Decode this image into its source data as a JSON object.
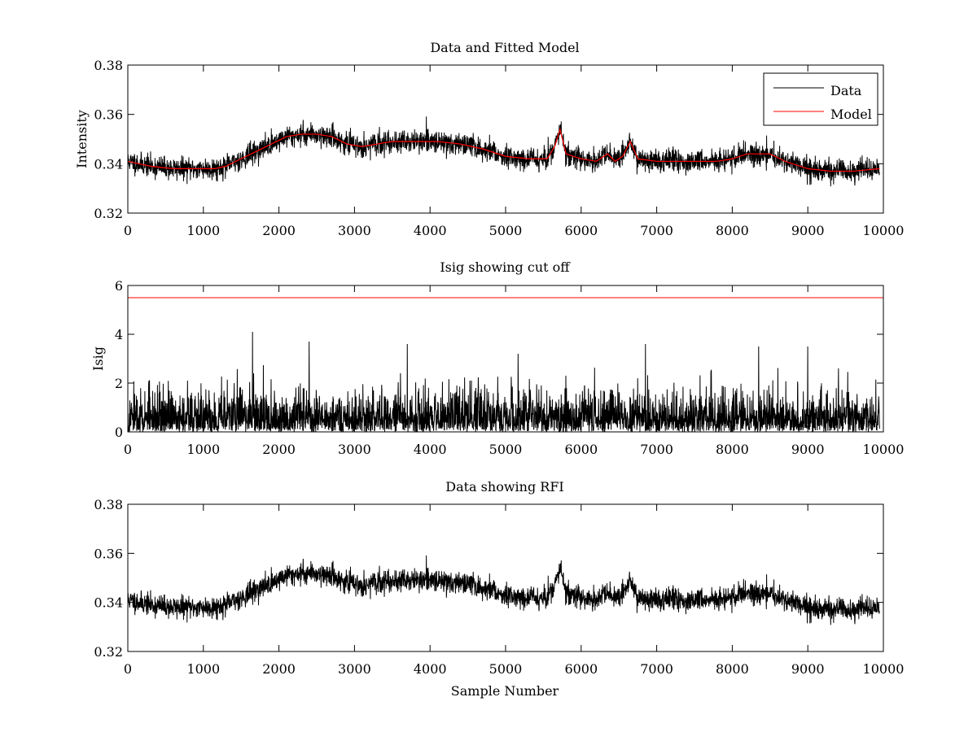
{
  "figure": {
    "background": "#ffffff"
  },
  "chart_data": [
    {
      "type": "line",
      "title": "Data and Fitted Model",
      "xlabel": "",
      "ylabel": "Intensity",
      "xlim": [
        0,
        10000
      ],
      "ylim": [
        0.32,
        0.38
      ],
      "xticks": [
        0,
        1000,
        2000,
        3000,
        4000,
        5000,
        6000,
        7000,
        8000,
        9000,
        10000
      ],
      "xtick_labels": [
        "0",
        "1000",
        "2000",
        "3000",
        "4000",
        "5000",
        "6000",
        "7000",
        "8000",
        "9000",
        "10000"
      ],
      "yticks": [
        0.32,
        0.34,
        0.36,
        0.38
      ],
      "ytick_labels": [
        "0.32",
        "0.34",
        "0.36",
        "0.38"
      ],
      "grid": false,
      "legend": {
        "placement": "top-right",
        "entries": [
          "Data",
          "Model"
        ]
      },
      "series": [
        {
          "name": "Data",
          "color": "#000000",
          "kind": "noisy",
          "x_max": 9950,
          "baseline": {
            "x": [
              0,
              300,
              600,
              900,
              1150,
              1300,
              1500,
              1700,
              1900,
              2100,
              2300,
              2500,
              2700,
              2900,
              3100,
              3300,
              3500,
              3800,
              4100,
              4400,
              4700,
              5000,
              5300,
              5550,
              5650,
              5720,
              5800,
              6000,
              6200,
              6350,
              6450,
              6550,
              6650,
              6750,
              7000,
              7500,
              7800,
              8000,
              8200,
              8500,
              8700,
              9000,
              9300,
              9600,
              9950
            ],
            "y": [
              0.341,
              0.339,
              0.338,
              0.338,
              0.338,
              0.339,
              0.342,
              0.345,
              0.348,
              0.351,
              0.352,
              0.352,
              0.351,
              0.348,
              0.347,
              0.348,
              0.349,
              0.349,
              0.349,
              0.348,
              0.346,
              0.343,
              0.342,
              0.342,
              0.347,
              0.354,
              0.344,
              0.342,
              0.341,
              0.344,
              0.341,
              0.343,
              0.349,
              0.342,
              0.341,
              0.341,
              0.341,
              0.342,
              0.344,
              0.344,
              0.341,
              0.338,
              0.337,
              0.337,
              0.338
            ]
          },
          "noise_amplitude": 0.004,
          "range_observed": [
            0.327,
            0.363
          ]
        },
        {
          "name": "Model",
          "color": "#ff0000",
          "kind": "smooth",
          "x": [
            0,
            300,
            600,
            900,
            1150,
            1300,
            1500,
            1700,
            1900,
            2100,
            2300,
            2500,
            2700,
            2900,
            3100,
            3300,
            3500,
            3800,
            4100,
            4400,
            4700,
            5000,
            5300,
            5550,
            5650,
            5720,
            5800,
            6000,
            6200,
            6350,
            6450,
            6550,
            6650,
            6750,
            7000,
            7500,
            7800,
            8000,
            8200,
            8500,
            8700,
            9000,
            9300,
            9600,
            9950
          ],
          "y": [
            0.341,
            0.339,
            0.338,
            0.338,
            0.338,
            0.339,
            0.342,
            0.345,
            0.348,
            0.351,
            0.352,
            0.352,
            0.351,
            0.348,
            0.347,
            0.348,
            0.349,
            0.349,
            0.349,
            0.348,
            0.346,
            0.343,
            0.342,
            0.342,
            0.347,
            0.354,
            0.344,
            0.342,
            0.341,
            0.344,
            0.341,
            0.343,
            0.349,
            0.342,
            0.341,
            0.341,
            0.341,
            0.342,
            0.344,
            0.344,
            0.341,
            0.338,
            0.337,
            0.337,
            0.338
          ]
        }
      ]
    },
    {
      "type": "line",
      "title": "Isig showing cut off",
      "xlabel": "",
      "ylabel": "Isig",
      "xlim": [
        0,
        10000
      ],
      "ylim": [
        0,
        6
      ],
      "xticks": [
        0,
        1000,
        2000,
        3000,
        4000,
        5000,
        6000,
        7000,
        8000,
        9000,
        10000
      ],
      "xtick_labels": [
        "0",
        "1000",
        "2000",
        "3000",
        "4000",
        "5000",
        "6000",
        "7000",
        "8000",
        "9000",
        "10000"
      ],
      "yticks": [
        0,
        2,
        4,
        6
      ],
      "ytick_labels": [
        "0",
        "2",
        "4",
        "6"
      ],
      "grid": false,
      "series": [
        {
          "color": "#000000",
          "kind": "halfnormal",
          "x_max": 9950,
          "scale": 0.8,
          "range_observed": [
            0,
            4.1
          ],
          "peaks": [
            [
              1650,
              4.1
            ],
            [
              2400,
              3.7
            ],
            [
              3700,
              3.6
            ],
            [
              6850,
              3.6
            ],
            [
              8350,
              3.5
            ],
            [
              9000,
              3.5
            ]
          ]
        },
        {
          "name": "cut off",
          "color": "#ff0000",
          "kind": "hline",
          "y": 5.5,
          "x": [
            0,
            10000
          ]
        }
      ]
    },
    {
      "type": "line",
      "title": "Data showing RFI",
      "xlabel": "Sample Number",
      "ylabel": "",
      "xlim": [
        0,
        10000
      ],
      "ylim": [
        0.32,
        0.38
      ],
      "xticks": [
        0,
        1000,
        2000,
        3000,
        4000,
        5000,
        6000,
        7000,
        8000,
        9000,
        10000
      ],
      "xtick_labels": [
        "0",
        "1000",
        "2000",
        "3000",
        "4000",
        "5000",
        "6000",
        "7000",
        "8000",
        "9000",
        "10000"
      ],
      "yticks": [
        0.32,
        0.34,
        0.36,
        0.38
      ],
      "ytick_labels": [
        "0.32",
        "0.34",
        "0.36",
        "0.38"
      ],
      "grid": false,
      "series": [
        {
          "color": "#000000",
          "kind": "noisy",
          "x_max": 9950,
          "baseline": {
            "x": [
              0,
              300,
              600,
              900,
              1150,
              1300,
              1500,
              1700,
              1900,
              2100,
              2300,
              2500,
              2700,
              2900,
              3100,
              3300,
              3500,
              3800,
              4100,
              4400,
              4700,
              5000,
              5300,
              5550,
              5650,
              5720,
              5800,
              6000,
              6200,
              6350,
              6450,
              6550,
              6650,
              6750,
              7000,
              7500,
              7800,
              8000,
              8200,
              8500,
              8700,
              9000,
              9300,
              9600,
              9950
            ],
            "y": [
              0.341,
              0.339,
              0.338,
              0.338,
              0.338,
              0.339,
              0.342,
              0.345,
              0.348,
              0.351,
              0.352,
              0.352,
              0.351,
              0.348,
              0.347,
              0.348,
              0.349,
              0.349,
              0.349,
              0.348,
              0.346,
              0.343,
              0.342,
              0.342,
              0.347,
              0.354,
              0.344,
              0.342,
              0.341,
              0.344,
              0.341,
              0.343,
              0.349,
              0.342,
              0.341,
              0.341,
              0.341,
              0.342,
              0.344,
              0.344,
              0.341,
              0.338,
              0.337,
              0.337,
              0.338
            ]
          },
          "noise_amplitude": 0.004,
          "range_observed": [
            0.327,
            0.363
          ]
        }
      ]
    }
  ]
}
